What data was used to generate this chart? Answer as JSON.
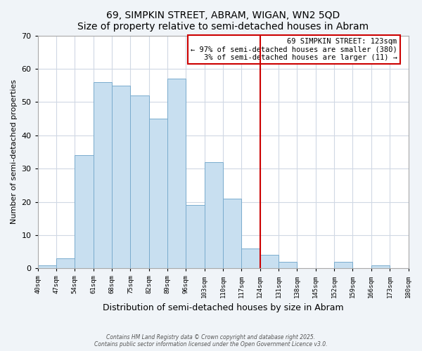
{
  "title": "69, SIMPKIN STREET, ABRAM, WIGAN, WN2 5QD",
  "subtitle": "Size of property relative to semi-detached houses in Abram",
  "xlabel": "Distribution of semi-detached houses by size in Abram",
  "ylabel": "Number of semi-detached properties",
  "bins": [
    40,
    47,
    54,
    61,
    68,
    75,
    82,
    89,
    96,
    103,
    110,
    117,
    124,
    131,
    138,
    145,
    152,
    159,
    166,
    173,
    180
  ],
  "counts": [
    1,
    3,
    34,
    56,
    55,
    52,
    45,
    57,
    19,
    32,
    21,
    6,
    4,
    2,
    0,
    0,
    2,
    0,
    1,
    0
  ],
  "bar_color": "#c8dff0",
  "bar_edge_color": "#7aacce",
  "vline_x": 124,
  "vline_color": "#cc0000",
  "ann_box_color": "#cc0000",
  "ylim": [
    0,
    70
  ],
  "yticks": [
    0,
    10,
    20,
    30,
    40,
    50,
    60,
    70
  ],
  "annotation_title": "69 SIMPKIN STREET: 123sqm",
  "annotation_line1": "← 97% of semi-detached houses are smaller (380)",
  "annotation_line2": "3% of semi-detached houses are larger (11) →",
  "footer1": "Contains HM Land Registry data © Crown copyright and database right 2025.",
  "footer2": "Contains public sector information licensed under the Open Government Licence v3.0.",
  "background_color": "#f0f4f8",
  "plot_bg_color": "#ffffff",
  "tick_labels": [
    "40sqm",
    "47sqm",
    "54sqm",
    "61sqm",
    "68sqm",
    "75sqm",
    "82sqm",
    "89sqm",
    "96sqm",
    "103sqm",
    "110sqm",
    "117sqm",
    "124sqm",
    "131sqm",
    "138sqm",
    "145sqm",
    "152sqm",
    "159sqm",
    "166sqm",
    "173sqm",
    "180sqm"
  ],
  "grid_color": "#d0d8e4"
}
